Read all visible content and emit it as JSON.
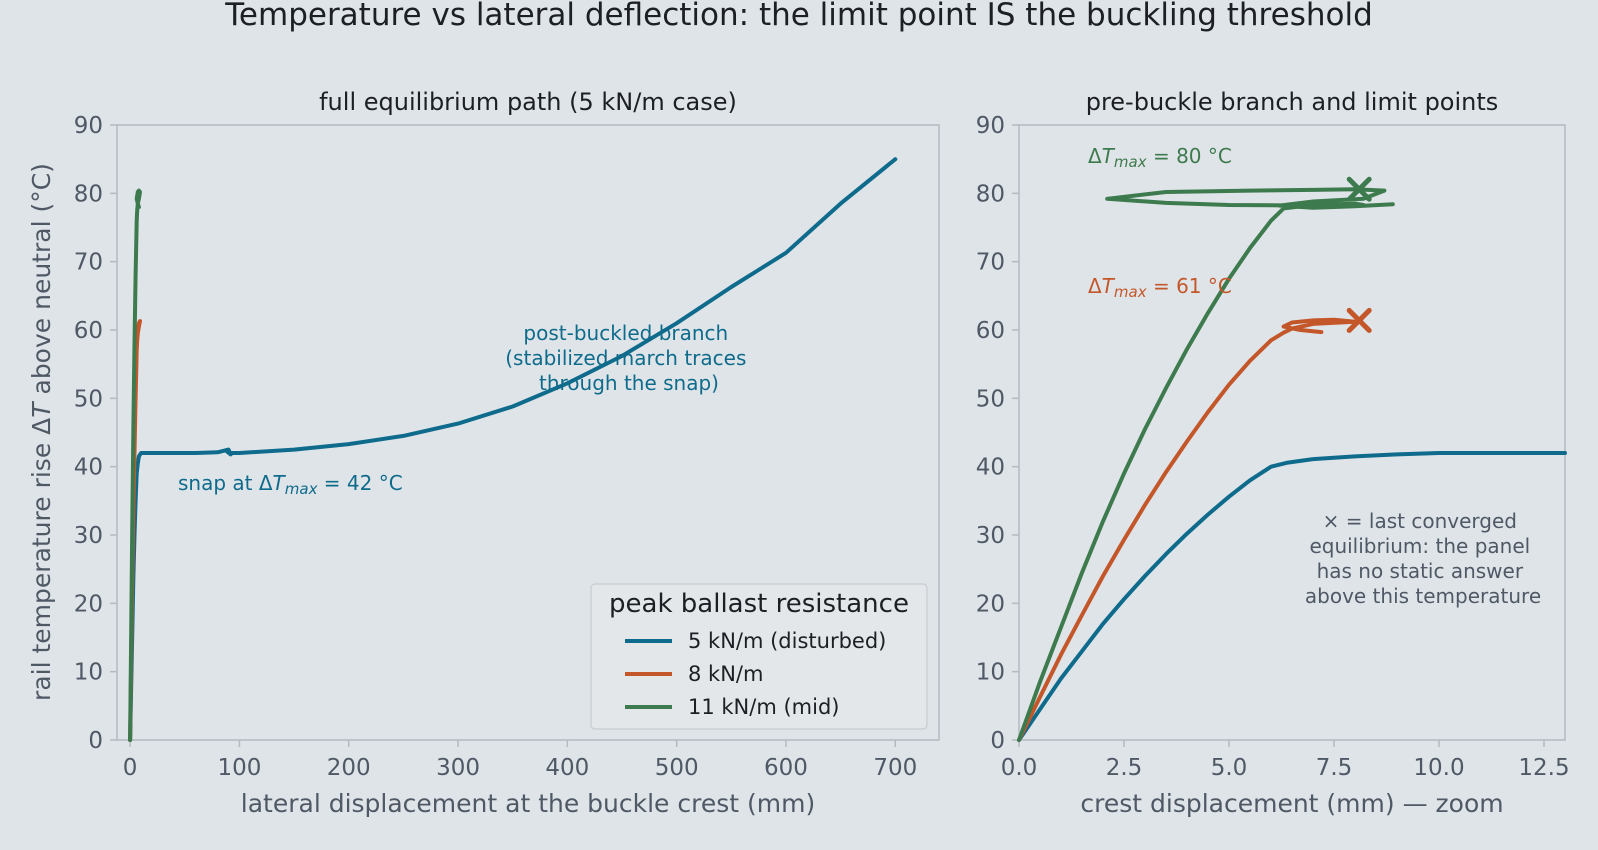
{
  "colors": {
    "background": "#dfe4e8",
    "series_5": "#0e6b8c",
    "series_8": "#c4572a",
    "series_11": "#3d7a4d",
    "axis": "#b3bac2",
    "tick_text": "#4f5966"
  },
  "figure": {
    "title": "Temperature vs lateral deflection: the limit point IS the buckling threshold"
  },
  "chart_data": [
    {
      "type": "line",
      "title": "full equilibrium path (5 kN/m case)",
      "xlabel": "lateral displacement at the buckle crest (mm)",
      "ylabel": "rail temperature rise ΔT above neutral (°C)",
      "ylabel_parts": [
        "rail temperature rise Δ",
        "T",
        " above neutral (°C)"
      ],
      "xlim": [
        -12,
        740
      ],
      "ylim": [
        0,
        90
      ],
      "xticks": [
        0,
        100,
        200,
        300,
        400,
        500,
        600,
        700
      ],
      "yticks": [
        0,
        10,
        20,
        30,
        40,
        50,
        60,
        70,
        80,
        90
      ],
      "grid": false,
      "legend": {
        "title": "peak ballast resistance",
        "placement": "lower-right",
        "entries": [
          "5 kN/m (disturbed)",
          "8 kN/m",
          "11 kN/m (mid)"
        ]
      },
      "series": [
        {
          "name": "5 kN/m (disturbed)",
          "x": [
            0,
            1,
            2,
            3,
            4,
            5,
            6,
            7,
            8,
            10,
            15,
            30,
            60,
            80,
            90,
            92,
            88,
            92,
            100,
            150,
            200,
            250,
            300,
            350,
            400,
            450,
            500,
            550,
            600,
            650,
            700
          ],
          "y": [
            0,
            8,
            16,
            24,
            30,
            35,
            39,
            40.5,
            41.5,
            42,
            42,
            42,
            42,
            42.1,
            42.5,
            41.8,
            42.3,
            42,
            42,
            42.5,
            43.3,
            44.5,
            46.3,
            48.8,
            52.2,
            56.2,
            61,
            66.3,
            71.3,
            78.5,
            85
          ]
        },
        {
          "name": "8 kN/m",
          "x": [
            0,
            1,
            2,
            3,
            4,
            5,
            6,
            6.5,
            7,
            8,
            9,
            8,
            7,
            6
          ],
          "y": [
            0,
            12,
            24,
            34,
            42,
            50,
            57,
            58.5,
            59.5,
            60.5,
            61.3,
            61,
            60.2,
            59.8
          ]
        },
        {
          "name": "11 kN/m (mid)",
          "x": [
            0,
            1,
            2,
            3,
            4,
            5,
            6,
            6.5,
            7,
            8,
            9,
            8,
            7,
            6,
            7,
            8
          ],
          "y": [
            0,
            16,
            32,
            46,
            58,
            68,
            76,
            77.5,
            78.5,
            79.2,
            80.2,
            80.4,
            80.2,
            79.2,
            78.5,
            78
          ]
        }
      ],
      "annotations": [
        {
          "text_lines": [
            "post-buckled branch",
            "(stabilized march traces",
            "through the snap)"
          ],
          "x": 455,
          "y": 55
        },
        {
          "text_parts": [
            "snap at Δ",
            "T",
            "max",
            " = 42 °C"
          ],
          "x": 40,
          "y": 37
        }
      ]
    },
    {
      "type": "line",
      "title": "pre-buckle branch and limit points",
      "xlabel": "crest displacement (mm) — zoom",
      "xlim": [
        0,
        13
      ],
      "ylim": [
        0,
        90
      ],
      "xticks": [
        0.0,
        2.5,
        5.0,
        7.5,
        10.0,
        12.5
      ],
      "xtick_labels": [
        "0.0",
        "2.5",
        "5.0",
        "7.5",
        "10.0",
        "12.5"
      ],
      "yticks": [
        0,
        10,
        20,
        30,
        40,
        50,
        60,
        70,
        80,
        90
      ],
      "grid": false,
      "series": [
        {
          "name": "5 kN/m (disturbed)",
          "x": [
            0,
            0.5,
            1,
            1.5,
            2,
            2.5,
            3,
            3.5,
            4,
            4.5,
            5,
            5.5,
            6,
            6.4,
            7,
            7.5,
            8,
            9,
            10,
            11,
            12,
            13
          ],
          "y": [
            0,
            4.5,
            9,
            13,
            17,
            20.6,
            24,
            27.2,
            30.2,
            33,
            35.6,
            38,
            40,
            40.6,
            41.1,
            41.3,
            41.5,
            41.8,
            42,
            42,
            42,
            42
          ]
        },
        {
          "name": "8 kN/m",
          "x": [
            0,
            0.5,
            1,
            1.5,
            2,
            2.5,
            3,
            3.5,
            4,
            4.5,
            5,
            5.5,
            6,
            6.3,
            6.5,
            7,
            8,
            7.5,
            7,
            6.5,
            6.3,
            6.7,
            7.2
          ],
          "y": [
            0,
            6.3,
            12.5,
            18.3,
            24,
            29.3,
            34.4,
            39.2,
            43.7,
            48,
            52,
            55.5,
            58.5,
            59.6,
            60.2,
            60.9,
            61.2,
            61.5,
            61.4,
            61.1,
            60.5,
            60,
            59.7
          ]
        },
        {
          "name": "11 kN/m (mid)",
          "x": [
            0,
            0.5,
            1,
            1.5,
            2,
            2.5,
            3,
            3.5,
            4,
            4.5,
            5,
            5.5,
            6,
            6.3,
            7,
            8,
            8.2,
            7,
            5,
            3.5,
            2.1,
            3.5,
            5.5,
            7,
            8,
            8.7,
            8.2,
            7,
            6.2,
            7,
            8,
            8.9
          ],
          "y": [
            0,
            8.5,
            16.5,
            24.5,
            32,
            39,
            45.5,
            51.5,
            57.2,
            62.5,
            67.5,
            72,
            76,
            77.8,
            78.3,
            78.5,
            78.3,
            78.2,
            78.3,
            78.6,
            79.2,
            80.2,
            80.4,
            80.5,
            80.6,
            80.4,
            79.2,
            78.8,
            78.2,
            77.9,
            78.1,
            78.4
          ]
        }
      ],
      "markers": [
        {
          "series": "8 kN/m",
          "symbol": "x",
          "x": 8.1,
          "y": 61.4
        },
        {
          "series": "11 kN/m (mid)",
          "symbol": "x",
          "x": 8.1,
          "y": 80.6
        }
      ],
      "annotations": [
        {
          "series": "11 kN/m (mid)",
          "text_parts": [
            "Δ",
            "T",
            "max",
            " = 80 °C"
          ],
          "x": 1.6,
          "y": 85
        },
        {
          "series": "8 kN/m",
          "text_parts": [
            "Δ",
            "T",
            "max",
            " = 61 °C"
          ],
          "x": 1.6,
          "y": 66
        },
        {
          "text_lines": [
            "× = last converged",
            "equilibrium: the panel",
            "has no static answer",
            "above this temperature"
          ],
          "x": 9.5,
          "y": 27
        }
      ]
    }
  ]
}
